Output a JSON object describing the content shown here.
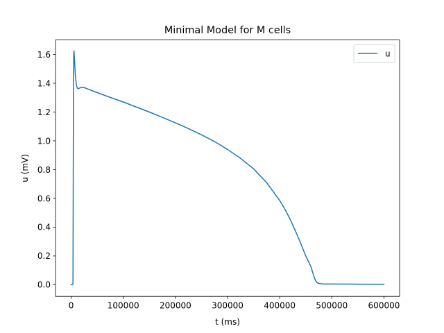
{
  "chart_data": {
    "type": "line",
    "title": "Minimal Model for M cells",
    "xlabel": "t (ms)",
    "ylabel": "u (mV)",
    "xlim": [
      -30000,
      630000
    ],
    "ylim": [
      -0.081,
      1.701
    ],
    "xticks": [
      0,
      100000,
      200000,
      300000,
      400000,
      500000,
      600000
    ],
    "xtick_labels": [
      "0",
      "100000",
      "200000",
      "300000",
      "400000",
      "500000",
      "600000"
    ],
    "yticks": [
      0.0,
      0.2,
      0.4,
      0.6,
      0.8,
      1.0,
      1.2,
      1.4,
      1.6
    ],
    "ytick_labels": [
      "0.0",
      "0.2",
      "0.4",
      "0.6",
      "0.8",
      "1.0",
      "1.2",
      "1.4",
      "1.6"
    ],
    "grid": false,
    "legend": {
      "position": "upper right"
    },
    "colors": {
      "series": "#1f77b4"
    },
    "series": [
      {
        "name": "u",
        "x": [
          0,
          2500,
          3500,
          4500,
          5000,
          5500,
          6500,
          8000,
          10000,
          12000,
          14000,
          17000,
          20000,
          25000,
          30000,
          50000,
          75000,
          100000,
          125000,
          150000,
          175000,
          200000,
          225000,
          250000,
          275000,
          300000,
          325000,
          350000,
          375000,
          400000,
          410000,
          420000,
          430000,
          440000,
          450000,
          460000,
          465000,
          468000,
          470000,
          473000,
          476000,
          480000,
          485000,
          490000,
          500000,
          550000,
          600000
        ],
        "y": [
          0.0,
          0.0,
          0.005,
          1.4,
          1.6,
          1.625,
          1.56,
          1.46,
          1.39,
          1.365,
          1.363,
          1.368,
          1.372,
          1.37,
          1.363,
          1.335,
          1.302,
          1.27,
          1.235,
          1.2,
          1.163,
          1.125,
          1.085,
          1.042,
          0.995,
          0.94,
          0.878,
          0.805,
          0.71,
          0.585,
          0.525,
          0.455,
          0.375,
          0.29,
          0.2,
          0.125,
          0.065,
          0.035,
          0.022,
          0.012,
          0.008,
          0.006,
          0.005,
          0.005,
          0.005,
          0.004,
          0.003
        ]
      }
    ]
  }
}
